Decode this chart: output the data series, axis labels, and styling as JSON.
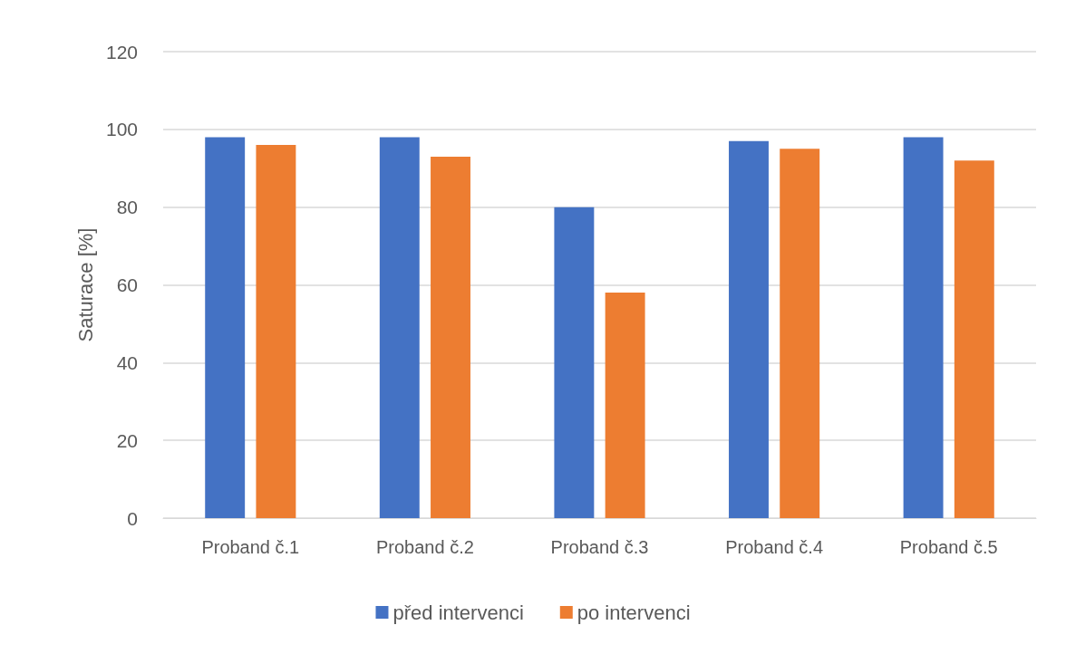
{
  "chart_data": {
    "type": "bar",
    "ylabel": "Saturace [%]",
    "categories": [
      "Proband č.1",
      "Proband č.2",
      "Proband č.3",
      "Proband č.4",
      "Proband č.5"
    ],
    "series": [
      {
        "name": "před intervenci",
        "color": "#4472c4",
        "values": [
          98,
          98,
          80,
          97,
          98
        ]
      },
      {
        "name": "po intervenci",
        "color": "#ed7d31",
        "values": [
          96,
          93,
          58,
          95,
          92
        ]
      }
    ],
    "ylim": [
      0,
      120
    ],
    "yticks": [
      0,
      20,
      40,
      60,
      80,
      100,
      120
    ],
    "grid": "y",
    "legend": "bottom"
  }
}
